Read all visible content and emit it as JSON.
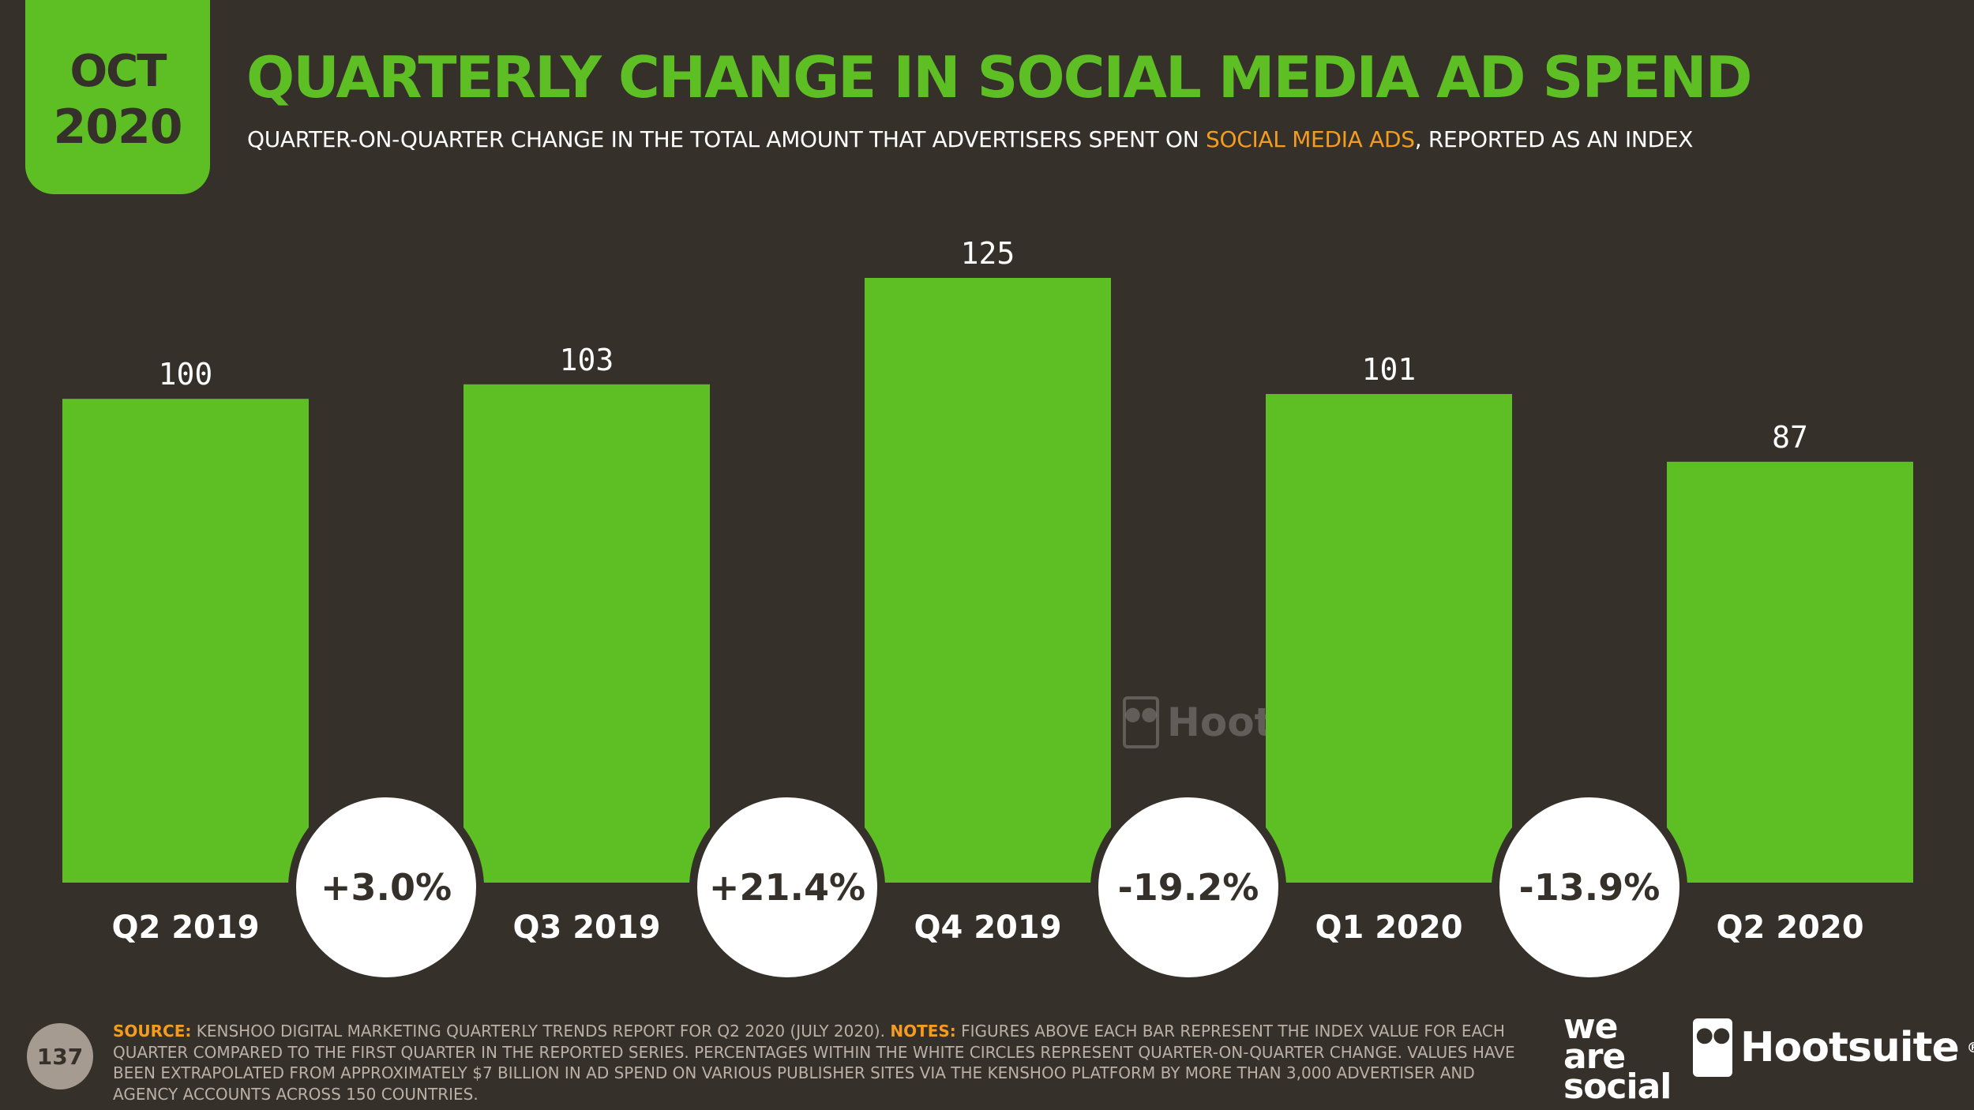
{
  "badge": {
    "month": "OCT",
    "year": "2020"
  },
  "title": "QUARTERLY CHANGE IN SOCIAL MEDIA AD SPEND",
  "subtitle": {
    "before": "QUARTER-ON-QUARTER CHANGE IN THE TOTAL AMOUNT THAT ADVERTISERS SPENT ON ",
    "highlight": "SOCIAL MEDIA ADS",
    "after": ", REPORTED AS AN INDEX"
  },
  "chart_data": {
    "type": "bar",
    "categories": [
      "Q2 2019",
      "Q3 2019",
      "Q4 2019",
      "Q1 2020",
      "Q2 2020"
    ],
    "values": [
      100,
      103,
      125,
      101,
      87
    ],
    "data_labels": [
      "100",
      "103",
      "125",
      "101",
      "87"
    ],
    "changes": [
      "+3.0%",
      "+21.4%",
      "-19.2%",
      "-13.9%"
    ],
    "ylim": [
      0,
      125
    ],
    "grid": false,
    "bar_color": "#5dbf23"
  },
  "watermark": {
    "we_are_social": [
      "we",
      "are",
      "social"
    ],
    "hootsuite": "Hootsuite"
  },
  "footer": {
    "page_number": "137",
    "source_label": "SOURCE:",
    "source_text": " KENSHOO DIGITAL MARKETING QUARTERLY TRENDS REPORT FOR Q2 2020 (JULY 2020). ",
    "notes_label": "NOTES:",
    "notes_text": " FIGURES ABOVE EACH BAR REPRESENT THE INDEX VALUE FOR EACH QUARTER COMPARED TO THE FIRST QUARTER IN THE REPORTED SERIES. PERCENTAGES WITHIN THE WHITE CIRCLES REPRESENT QUARTER-ON-QUARTER CHANGE. VALUES HAVE BEEN EXTRAPOLATED FROM APPROXIMATELY $7 BILLION IN AD SPEND ON VARIOUS PUBLISHER SITES VIA THE KENSHOO PLATFORM BY MORE THAN 3,000 ADVERTISER AND AGENCY ACCOUNTS ACROSS 150 COUNTRIES."
  },
  "logos": {
    "we_are_social": [
      "we",
      "are",
      "social"
    ],
    "hootsuite": "Hootsuite",
    "registered": "®"
  },
  "colors": {
    "background": "#36302a",
    "accent": "#5dbf23",
    "highlight": "#f39c1e",
    "circle": "#ffffff"
  }
}
